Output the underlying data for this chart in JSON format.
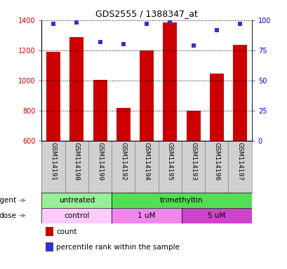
{
  "title": "GDS2555 / 1388347_at",
  "samples": [
    "GSM114191",
    "GSM114198",
    "GSM114199",
    "GSM114192",
    "GSM114194",
    "GSM114195",
    "GSM114193",
    "GSM114196",
    "GSM114197"
  ],
  "counts": [
    1190,
    1290,
    1005,
    820,
    1198,
    1385,
    800,
    1045,
    1235
  ],
  "percentiles": [
    97,
    98,
    82,
    80,
    97,
    99,
    79,
    92,
    97
  ],
  "ylim_left": [
    600,
    1400
  ],
  "ylim_right": [
    0,
    100
  ],
  "yticks_left": [
    600,
    800,
    1000,
    1200,
    1400
  ],
  "yticks_right": [
    0,
    25,
    50,
    75,
    100
  ],
  "bar_color": "#cc0000",
  "dot_color": "#3333cc",
  "bar_width": 0.6,
  "agent_groups": [
    {
      "label": "untreated",
      "start": 0,
      "end": 3,
      "color": "#99ee99"
    },
    {
      "label": "trimethyltin",
      "start": 3,
      "end": 9,
      "color": "#55dd55"
    }
  ],
  "dose_groups": [
    {
      "label": "control",
      "start": 0,
      "end": 3,
      "color": "#ffccff"
    },
    {
      "label": "1 uM",
      "start": 3,
      "end": 6,
      "color": "#ee88ee"
    },
    {
      "label": "5 uM",
      "start": 6,
      "end": 9,
      "color": "#cc44cc"
    }
  ],
  "agent_label": "agent",
  "dose_label": "dose",
  "legend_count_label": "count",
  "legend_pct_label": "percentile rank within the sample",
  "bg_color": "#ffffff",
  "tick_label_color_left": "#cc0000",
  "tick_label_color_right": "#0000cc",
  "xlab_bg": "#d0d0d0",
  "cell_border": "#888888"
}
